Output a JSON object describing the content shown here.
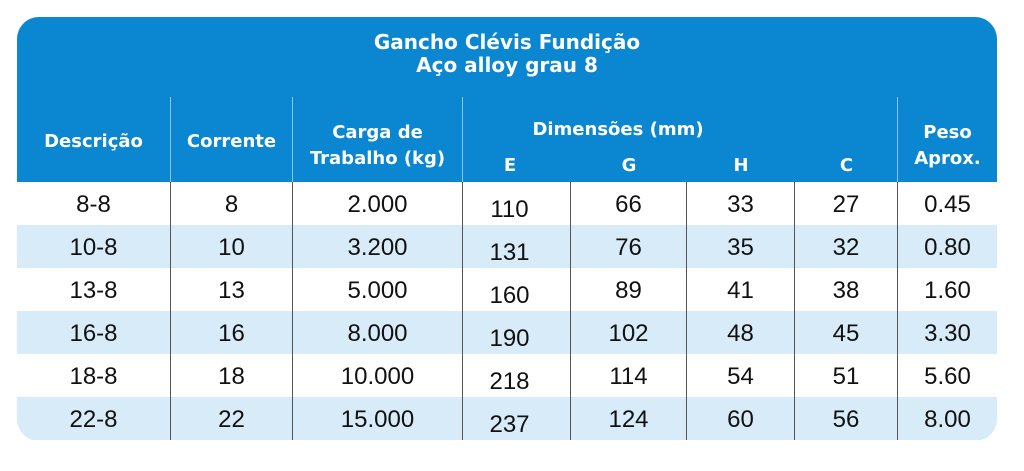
{
  "title": {
    "line1": "Gancho Clévis Fundição",
    "line2": "Aço alloy grau 8"
  },
  "colors": {
    "header": "#0b86d1",
    "alt_row": "#d8ebf9"
  },
  "headers": {
    "descricao": "Descrição",
    "corrente": "Corrente",
    "carga_line1": "Carga de",
    "carga_line2": "Trabalho (kg)",
    "dimensoes": "Dimensões (mm)",
    "e": "E",
    "g": "G",
    "h": "H",
    "c": "C",
    "peso_line1": "Peso",
    "peso_line2": "Aprox."
  },
  "rows": [
    [
      "8-8",
      "8",
      "2.000",
      "110",
      "66",
      "33",
      "27",
      "0.45"
    ],
    [
      "10-8",
      "10",
      "3.200",
      "131",
      "76",
      "35",
      "32",
      "0.80"
    ],
    [
      "13-8",
      "13",
      "5.000",
      "160",
      "89",
      "41",
      "38",
      "1.60"
    ],
    [
      "16-8",
      "16",
      "8.000",
      "190",
      "102",
      "48",
      "45",
      "3.30"
    ],
    [
      "18-8",
      "18",
      "10.000",
      "218",
      "114",
      "54",
      "51",
      "5.60"
    ],
    [
      "22-8",
      "22",
      "15.000",
      "237",
      "124",
      "60",
      "56",
      "8.00"
    ]
  ]
}
